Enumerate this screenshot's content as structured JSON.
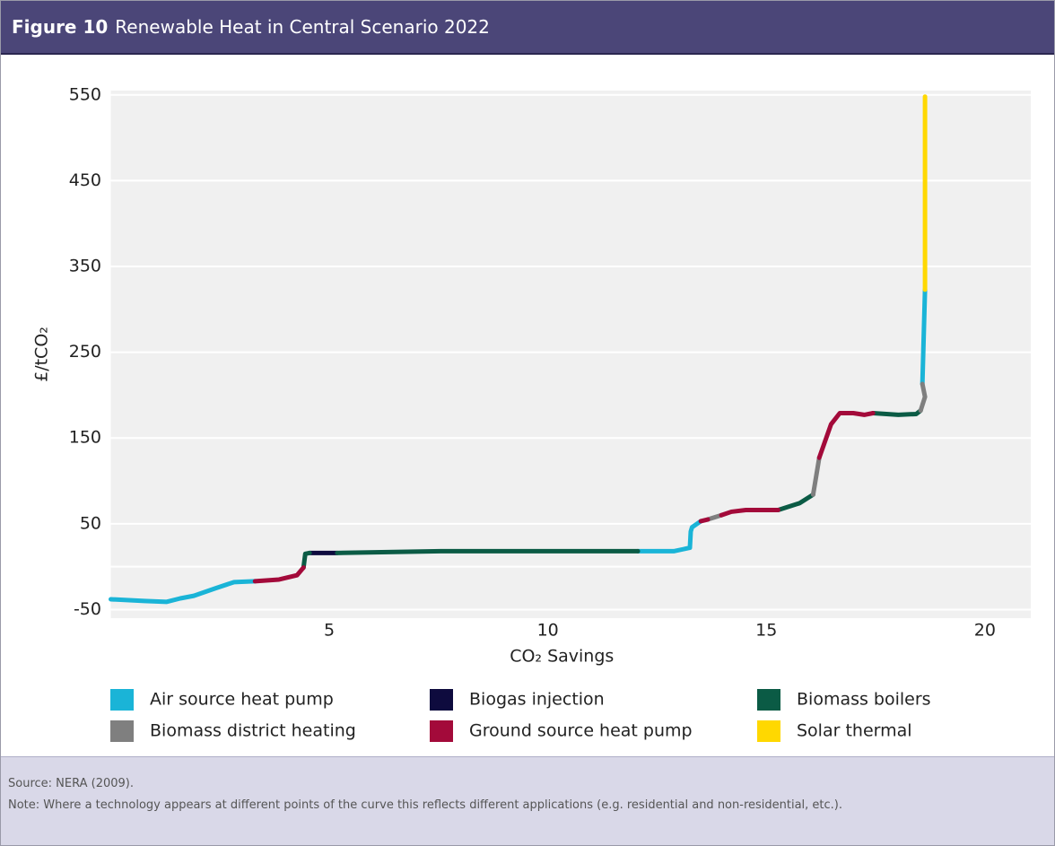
{
  "chart_data": {
    "type": "line",
    "figure_label": "Figure 10",
    "title": "Renewable Heat in Central Scenario 2022",
    "x_label": "CO₂ Savings",
    "y_label": "£/tCO₂",
    "xlim": [
      0,
      21.05
    ],
    "xticks": [
      5,
      10,
      15,
      20
    ],
    "ylim": [
      -60,
      555
    ],
    "yticks": [
      -50,
      50,
      150,
      250,
      350,
      450,
      550
    ],
    "grid": true,
    "series": [
      {
        "name": "Air source heat pump",
        "color": "#1ab4d7",
        "x": [
          0,
          0.77,
          1.28,
          1.59,
          1.9,
          2.41,
          2.82,
          3.3,
          null,
          12.06,
          12.88,
          13.25,
          13.27,
          13.3,
          13.5,
          null,
          18.57,
          18.63
        ],
        "values": [
          -38,
          -40,
          -41,
          -37,
          -34,
          -25,
          -18,
          -17,
          null,
          18,
          18,
          22,
          41,
          46,
          53,
          null,
          213,
          323
        ]
      },
      {
        "name": "Biogas injection",
        "color": "#0e0b3e",
        "x": [
          4.55,
          5.18
        ],
        "values": [
          16,
          16
        ]
      },
      {
        "name": "Biomass boilers",
        "color": "#0b5b45",
        "x": [
          4.41,
          4.45,
          4.55,
          null,
          5.18,
          7.55,
          12.06,
          null,
          15.27,
          15.76,
          16.07,
          null,
          17.44,
          18.02,
          18.43,
          18.53
        ],
        "values": [
          -1,
          15,
          16,
          null,
          16,
          18,
          18,
          null,
          66,
          74,
          84,
          null,
          179,
          177,
          178,
          182
        ]
      },
      {
        "name": "Biomass district heating",
        "color": "#7f7f7f",
        "x": [
          13.66,
          13.97,
          null,
          16.07,
          16.21,
          null,
          18.53,
          18.63,
          18.57
        ],
        "values": [
          55,
          60,
          null,
          84,
          127,
          null,
          182,
          198,
          213
        ]
      },
      {
        "name": "Ground source heat pump",
        "color": "#a30a3a",
        "x": [
          3.3,
          3.85,
          4.26,
          4.41,
          null,
          13.5,
          13.66,
          null,
          13.97,
          14.2,
          14.53,
          14.94,
          15.27,
          null,
          16.21,
          16.48,
          16.68,
          16.99,
          17.24,
          17.44
        ],
        "values": [
          -17,
          -15,
          -10,
          -1,
          null,
          53,
          55,
          null,
          60,
          64,
          66,
          66,
          66,
          null,
          127,
          166,
          179,
          179,
          177,
          179
        ]
      },
      {
        "name": "Solar thermal",
        "color": "#ffd800",
        "x": [
          18.63,
          18.63
        ],
        "values": [
          323,
          548
        ]
      }
    ]
  },
  "source": "Source: NERA (2009).",
  "note": "Note: Where a technology appears at different points of the curve this reflects different applications (e.g. residential and non-residential, etc.)."
}
